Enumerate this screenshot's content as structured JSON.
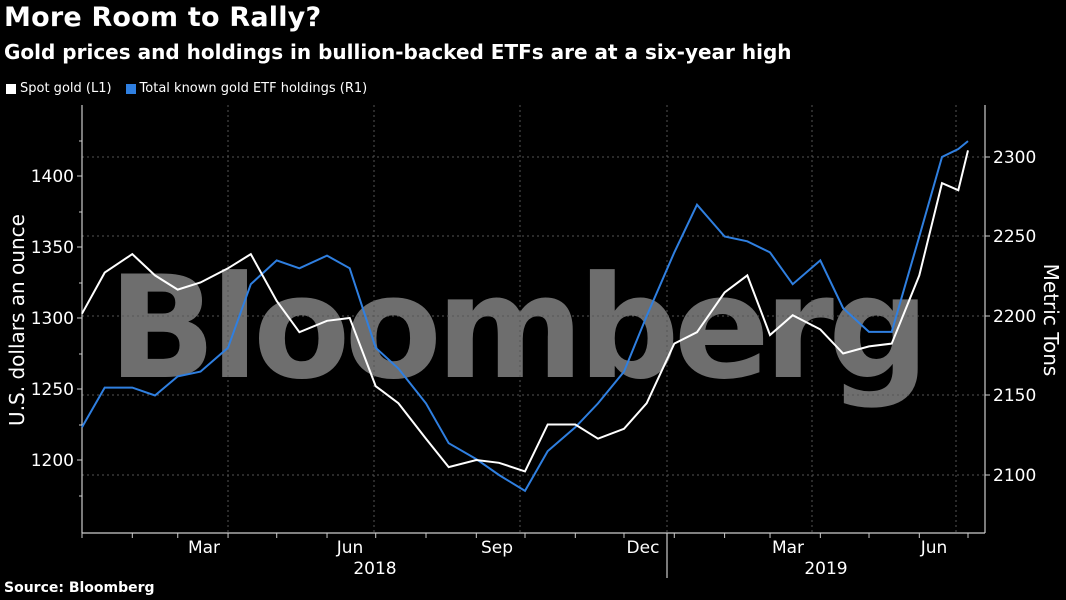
{
  "header": {
    "title": "More Room to Rally?",
    "subtitle": "Gold prices and holdings in bullion-backed ETFs are at a six-year high"
  },
  "legend": [
    {
      "label": "Spot gold (L1)",
      "color": "#ffffff"
    },
    {
      "label": "Total known gold ETF holdings (R1)",
      "color": "#2f7fe0"
    }
  ],
  "watermark": "Bloomberg",
  "footer": {
    "source": "Source: Bloomberg"
  },
  "chart_data": {
    "type": "line",
    "title": "More Room to Rally?",
    "subtitle": "Gold prices and holdings in bullion-backed ETFs are at a six-year high",
    "xlabel": "",
    "ylabel_left": "U.S. dollars an ounce",
    "ylabel_right": "Metric Tons",
    "x_tick_labels": [
      "Mar",
      "Jun",
      "Sep",
      "Dec",
      "Mar",
      "Jun"
    ],
    "x_year_labels": [
      "2018",
      "2019"
    ],
    "y_left_ticks": [
      1200,
      1250,
      1300,
      1350,
      1400
    ],
    "y_right_ticks": [
      2100,
      2150,
      2200,
      2250,
      2300
    ],
    "ylim_left": [
      1160,
      1445
    ],
    "ylim_right": [
      2070,
      2330
    ],
    "grid": true,
    "legend_position": "top-left",
    "x": [
      "2018-01-01",
      "2018-01-15",
      "2018-02-01",
      "2018-02-15",
      "2018-03-01",
      "2018-03-15",
      "2018-04-01",
      "2018-04-15",
      "2018-05-01",
      "2018-05-15",
      "2018-06-01",
      "2018-06-15",
      "2018-07-01",
      "2018-07-15",
      "2018-08-01",
      "2018-08-15",
      "2018-09-01",
      "2018-09-15",
      "2018-10-01",
      "2018-10-15",
      "2018-11-01",
      "2018-11-15",
      "2018-12-01",
      "2018-12-15",
      "2019-01-01",
      "2019-01-15",
      "2019-02-01",
      "2019-02-15",
      "2019-03-01",
      "2019-03-15",
      "2019-04-01",
      "2019-04-15",
      "2019-05-01",
      "2019-05-15",
      "2019-06-01",
      "2019-06-15",
      "2019-06-25",
      "2019-07-01"
    ],
    "series": [
      {
        "name": "Spot gold (L1)",
        "axis": "left",
        "color": "#ffffff",
        "values": [
          1303,
          1332,
          1345,
          1330,
          1320,
          1325,
          1335,
          1345,
          1312,
          1290,
          1298,
          1300,
          1252,
          1240,
          1215,
          1195,
          1200,
          1198,
          1192,
          1225,
          1225,
          1215,
          1222,
          1240,
          1282,
          1290,
          1318,
          1330,
          1288,
          1302,
          1292,
          1275,
          1280,
          1282,
          1330,
          1395,
          1390,
          1418
        ]
      },
      {
        "name": "Total known gold ETF holdings (R1)",
        "axis": "right",
        "color": "#2f7fe0",
        "values": [
          2130,
          2155,
          2155,
          2150,
          2162,
          2165,
          2180,
          2220,
          2235,
          2230,
          2238,
          2230,
          2180,
          2167,
          2145,
          2120,
          2110,
          2100,
          2090,
          2115,
          2130,
          2145,
          2165,
          2200,
          2240,
          2270,
          2250,
          2247,
          2240,
          2220,
          2235,
          2205,
          2190,
          2190,
          2250,
          2300,
          2305,
          2310
        ]
      }
    ]
  }
}
